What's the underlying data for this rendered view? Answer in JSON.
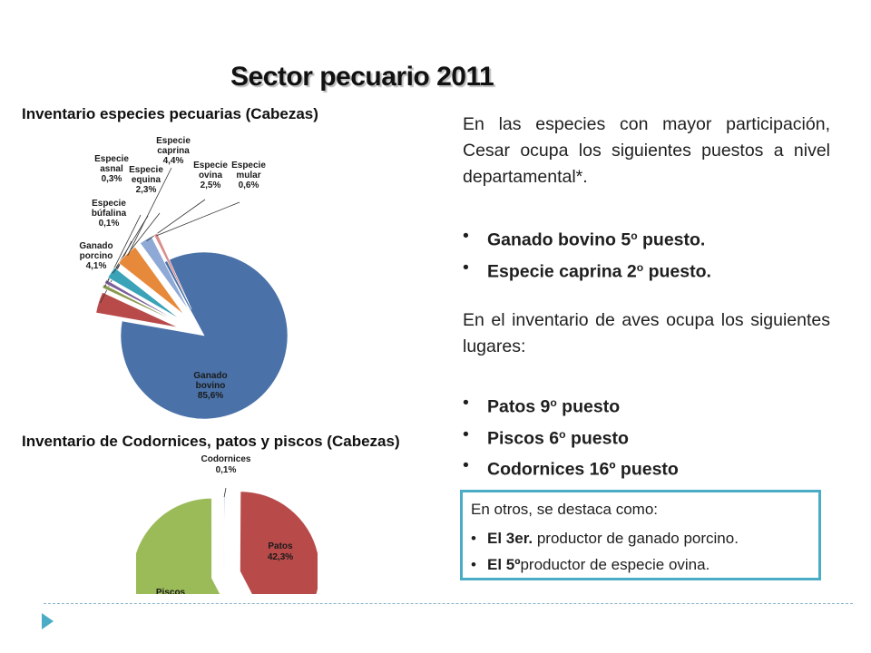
{
  "slide": {
    "title": "Sector pecuario 2011"
  },
  "right_panel": {
    "intro": "En las especies con mayor participación, Cesar ocupa los siguientes puestos a nivel departamental*.",
    "ranking_bullets": [
      {
        "pre": "Ganado bovino 5",
        "sup": "o",
        "post": " puesto."
      },
      {
        "pre": "Especie caprina 2",
        "sup": "o",
        "post": " puesto."
      }
    ],
    "aves_intro": "En el inventario de aves ocupa los siguientes lugares:",
    "aves_bullets": [
      {
        "pre": "Patos  9",
        "sup": "o",
        "post": " puesto"
      },
      {
        "pre": "Piscos 6",
        "sup": "o",
        "post": " puesto"
      },
      {
        "pre": "Codornices 16º puesto",
        "sup": "",
        "post": ""
      }
    ],
    "bullet_glyph": "•",
    "box": {
      "title": "En otros, se destaca como:",
      "items": [
        {
          "bold": "El 3er.",
          "rest": " productor de ganado porcino."
        },
        {
          "bold": "El 5º",
          "rest": "productor de especie ovina."
        }
      ]
    }
  },
  "chart_data": [
    {
      "type": "pie",
      "title": "Inventario especies pecuarias (Cabezas)",
      "unit": "%",
      "slices": [
        {
          "label": "Ganado bovino",
          "value": 85.6,
          "value_text": "85,6%",
          "color": "#4a72a8"
        },
        {
          "label": "Ganado porcino",
          "value": 4.1,
          "value_text": "4,1%",
          "color": "#b84a4a"
        },
        {
          "label": "Especie búfalina",
          "value": 0.1,
          "value_text": "0,1%",
          "color": "#8a9a50"
        },
        {
          "label": "Especie asnal",
          "value": 0.3,
          "value_text": "0,3%",
          "color": "#7a5d9a"
        },
        {
          "label": "Especie equina",
          "value": 2.3,
          "value_text": "2,3%",
          "color": "#3aa3b8"
        },
        {
          "label": "Especie caprina",
          "value": 4.4,
          "value_text": "4,4%",
          "color": "#e7893a"
        },
        {
          "label": "Especie ovina",
          "value": 2.5,
          "value_text": "2,5%",
          "color": "#8ea9d6"
        },
        {
          "label": "Especie mular",
          "value": 0.6,
          "value_text": "0,6%",
          "color": "#d98c8c"
        }
      ]
    },
    {
      "type": "pie",
      "title": "Inventario de Codornices, patos y piscos (Cabezas)",
      "unit": "%",
      "slices": [
        {
          "label": "Codornices",
          "value": 0.1,
          "value_text": "0,1%",
          "color": "#4a72a8"
        },
        {
          "label": "Patos",
          "value": 42.3,
          "value_text": "42,3%",
          "color": "#b84a4a"
        },
        {
          "label": "Piscos",
          "value": 57.6,
          "value_text": "",
          "color": "#9bbb59"
        }
      ]
    }
  ],
  "colors": {
    "box_border": "#4bacc6",
    "divider": "#8fb3c9",
    "nav_arrow": "#4bacc6"
  },
  "icons": {
    "nav": "triangle-right-icon"
  }
}
